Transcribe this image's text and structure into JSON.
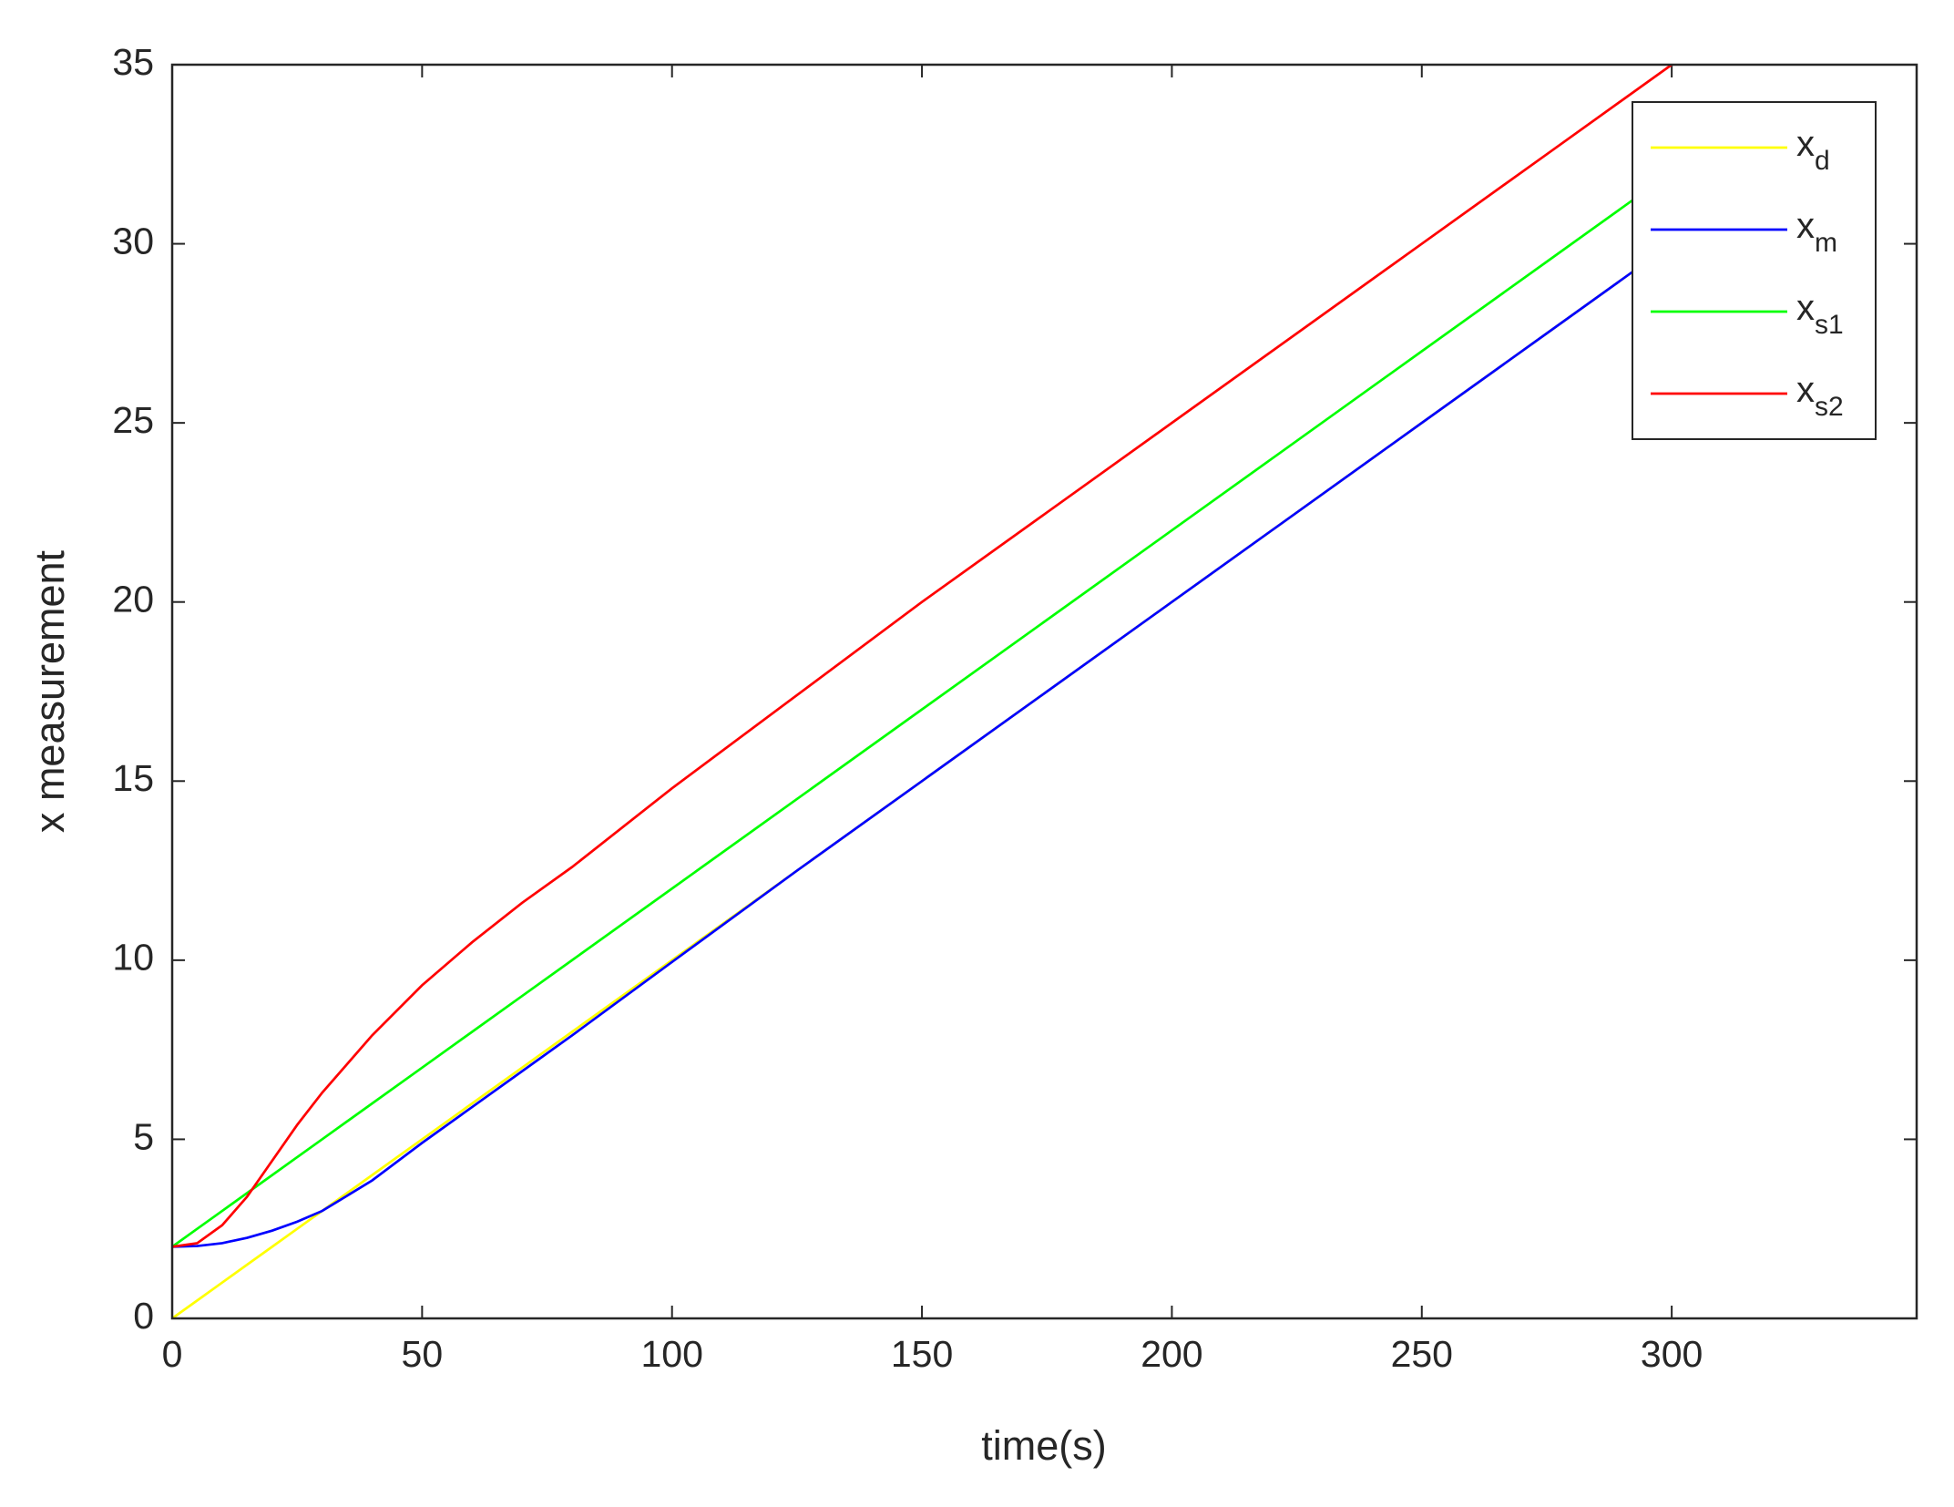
{
  "chart_data": {
    "type": "line",
    "x_label": "time(s)",
    "y_label": "x measurement",
    "x": [
      0,
      5,
      10,
      15,
      20,
      25,
      30,
      40,
      50,
      60,
      70,
      80,
      100,
      125,
      150,
      175,
      200,
      225,
      250,
      275,
      300
    ],
    "series": [
      {
        "name": "xd",
        "color": "#ffff00",
        "values": [
          0,
          0.5,
          1,
          1.5,
          2,
          2.5,
          3,
          4,
          5,
          6,
          7,
          8,
          10,
          12.5,
          15,
          17.5,
          20,
          22.5,
          25,
          27.5,
          30
        ]
      },
      {
        "name": "xm",
        "color": "#0000ff",
        "values": [
          2,
          2.02,
          2.1,
          2.25,
          2.45,
          2.7,
          3,
          3.85,
          4.9,
          5.9,
          6.9,
          7.9,
          9.95,
          12.5,
          15,
          17.5,
          20,
          22.5,
          25,
          27.5,
          30
        ]
      },
      {
        "name": "xs1",
        "color": "#00ff00",
        "values": [
          2,
          2.5,
          3,
          3.5,
          4,
          4.5,
          5,
          6,
          7,
          8,
          9,
          10,
          12,
          14.5,
          17,
          19.5,
          22,
          24.5,
          27,
          29.5,
          32
        ]
      },
      {
        "name": "xs2",
        "color": "#ff0000",
        "values": [
          2,
          2.1,
          2.6,
          3.4,
          4.4,
          5.4,
          6.3,
          7.9,
          9.3,
          10.5,
          11.6,
          12.6,
          14.8,
          17.4,
          20,
          22.5,
          25,
          27.5,
          30,
          32.5,
          35
        ]
      }
    ],
    "xlim": [
      0,
      349
    ],
    "ylim": [
      0,
      35
    ],
    "xticks": [
      0,
      50,
      100,
      150,
      200,
      250,
      300
    ],
    "yticks": [
      0,
      5,
      10,
      15,
      20,
      25,
      30,
      35
    ],
    "grid": false,
    "legend": "upper right"
  }
}
